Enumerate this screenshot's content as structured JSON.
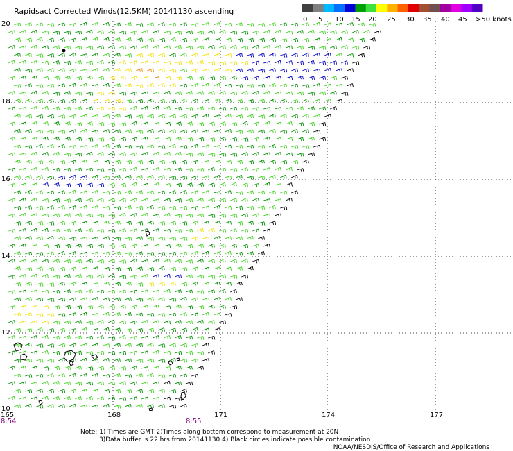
{
  "title": "Rapidsact Corrected Winds(12.5KM) 20141130 ascending",
  "colorbar": {
    "labels": [
      "0",
      "5",
      "10",
      "15",
      "20",
      "25",
      "30",
      "35",
      "40",
      "45",
      ">50 knots"
    ],
    "colors": [
      "#404040",
      "#808080",
      "#00b8ff",
      "#0070ff",
      "#0000d8",
      "#00a000",
      "#40e040",
      "#ffff00",
      "#ffb000",
      "#ff6000",
      "#e00000",
      "#a05030",
      "#705050",
      "#a000a0",
      "#e000e0",
      "#a000ff",
      "#5000c0"
    ]
  },
  "lat_labels": [
    "20",
    "18",
    "16",
    "14",
    "12",
    "10"
  ],
  "lon_labels": [
    "165",
    "168",
    "171",
    "174",
    "177"
  ],
  "time_labels": [
    "8:54",
    "8:55"
  ],
  "time_color": "#800080",
  "note_line1": "Note: 1) Times are GMT 2)Times along bottom correspond to measurement at 20N",
  "note_line2": "3)Data buffer is 22 hrs from 20141130 4) Black circles indicate possible contamination",
  "credit": "NOAA/NESDIS/Office of Research and Applications",
  "wind_colors": {
    "light": "#40d020",
    "medium": "#009000",
    "yellow": "#f0e000",
    "orange": "#e08000",
    "red": "#c03000",
    "blue": "#0000c0",
    "dark": "#000000"
  }
}
